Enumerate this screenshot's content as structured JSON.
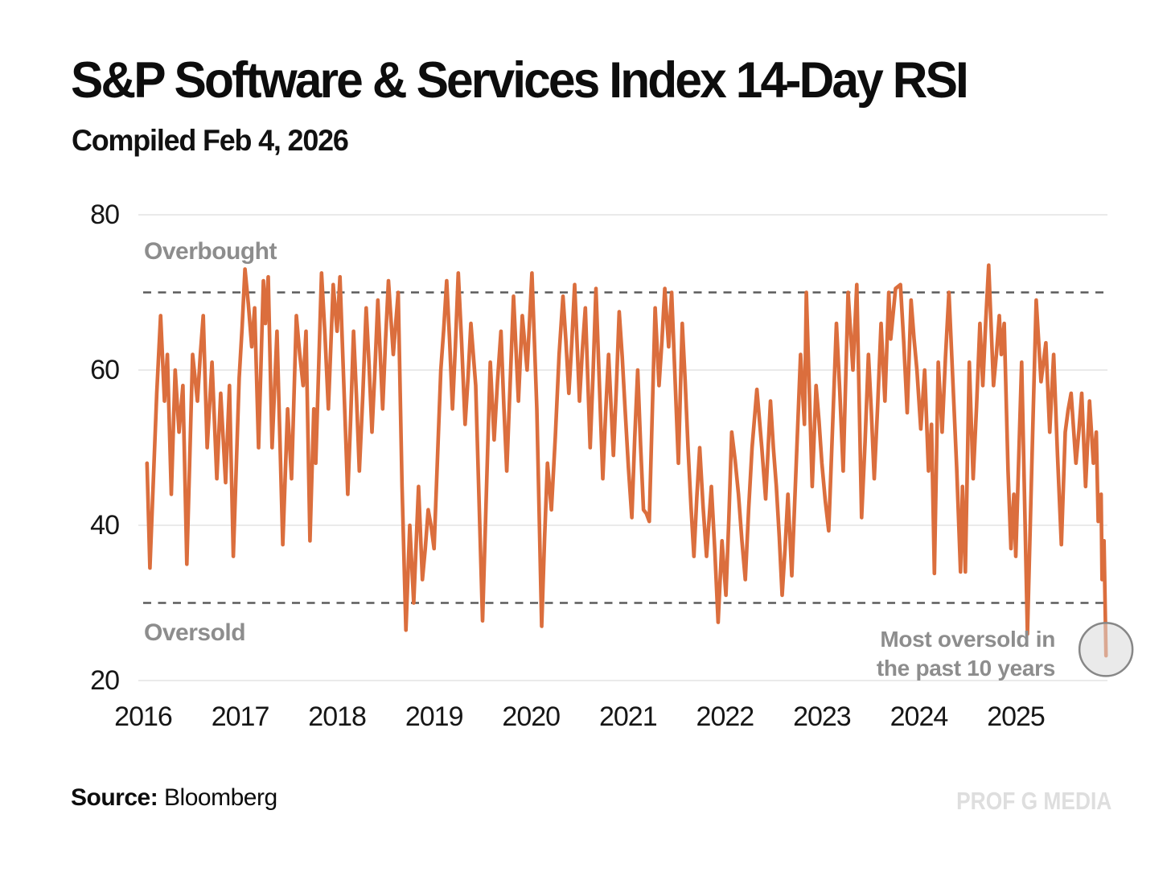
{
  "meta": {
    "title": "S&P Software & Services Index 14-Day RSI",
    "subtitle": "Compiled Feb 4, 2026",
    "source_label": "Source:",
    "source_value": "Bloomberg",
    "watermark": "PROF G MEDIA"
  },
  "chart_data": {
    "type": "line",
    "title": "S&P Software & Services Index 14-Day RSI",
    "subtitle": "Compiled Feb 4, 2026",
    "series_name": "14-Day RSI",
    "line_color": "#DB6E3D",
    "grid_color": "#e4e4e4",
    "band_line_color": "#5b5b5b",
    "label_color": "#8d8d8d",
    "x_axis": {
      "ticks": [
        2016,
        2017,
        2018,
        2019,
        2020,
        2021,
        2022,
        2023,
        2024,
        2025
      ],
      "range": [
        2016.0,
        2025.95
      ]
    },
    "y_axis": {
      "ticks": [
        20,
        40,
        60,
        80
      ],
      "range": [
        20,
        80
      ],
      "grid": true
    },
    "bands": {
      "overbought": {
        "value": 70,
        "label": "Overbought"
      },
      "oversold": {
        "value": 30,
        "label": "Oversold"
      }
    },
    "annotation": {
      "line1": "Most oversold in",
      "line2": "the past 10 years",
      "circle": {
        "t": 2025.93,
        "value_center": 24,
        "radius": 33,
        "fill": "#d9d9d9",
        "fill_opacity": 0.55,
        "stroke": "#878787"
      }
    },
    "render": {
      "jitter": 2.2,
      "stroke_width": 4.6
    },
    "points": [
      [
        2016.04,
        48
      ],
      [
        2016.07,
        34.5
      ],
      [
        2016.14,
        57
      ],
      [
        2016.18,
        67
      ],
      [
        2016.22,
        56
      ],
      [
        2016.25,
        62
      ],
      [
        2016.29,
        44
      ],
      [
        2016.33,
        60
      ],
      [
        2016.37,
        52
      ],
      [
        2016.41,
        58
      ],
      [
        2016.45,
        35
      ],
      [
        2016.51,
        62
      ],
      [
        2016.56,
        56
      ],
      [
        2016.62,
        67
      ],
      [
        2016.66,
        50
      ],
      [
        2016.71,
        61
      ],
      [
        2016.76,
        46
      ],
      [
        2016.8,
        57
      ],
      [
        2016.85,
        45.5
      ],
      [
        2016.89,
        58
      ],
      [
        2016.93,
        36
      ],
      [
        2016.99,
        59
      ],
      [
        2017.05,
        73
      ],
      [
        2017.12,
        63
      ],
      [
        2017.15,
        68
      ],
      [
        2017.19,
        50
      ],
      [
        2017.24,
        71.5
      ],
      [
        2017.26,
        66
      ],
      [
        2017.29,
        72
      ],
      [
        2017.33,
        50
      ],
      [
        2017.38,
        65
      ],
      [
        2017.44,
        37.5
      ],
      [
        2017.49,
        55
      ],
      [
        2017.53,
        46
      ],
      [
        2017.58,
        67
      ],
      [
        2017.65,
        58
      ],
      [
        2017.68,
        65
      ],
      [
        2017.72,
        38
      ],
      [
        2017.76,
        55
      ],
      [
        2017.78,
        48
      ],
      [
        2017.84,
        72.5
      ],
      [
        2017.91,
        55
      ],
      [
        2017.96,
        71
      ],
      [
        2018.0,
        65
      ],
      [
        2018.03,
        72
      ],
      [
        2018.11,
        44
      ],
      [
        2018.17,
        65
      ],
      [
        2018.23,
        47
      ],
      [
        2018.3,
        68
      ],
      [
        2018.36,
        52
      ],
      [
        2018.42,
        69
      ],
      [
        2018.47,
        55
      ],
      [
        2018.53,
        71.5
      ],
      [
        2018.58,
        62
      ],
      [
        2018.63,
        70
      ],
      [
        2018.67,
        45
      ],
      [
        2018.71,
        26.5
      ],
      [
        2018.75,
        40
      ],
      [
        2018.79,
        30
      ],
      [
        2018.84,
        45
      ],
      [
        2018.88,
        33
      ],
      [
        2018.94,
        42
      ],
      [
        2019.0,
        37
      ],
      [
        2019.07,
        60
      ],
      [
        2019.13,
        71.5
      ],
      [
        2019.19,
        55
      ],
      [
        2019.25,
        72.5
      ],
      [
        2019.32,
        53
      ],
      [
        2019.38,
        66
      ],
      [
        2019.43,
        58
      ],
      [
        2019.5,
        27.7
      ],
      [
        2019.58,
        61
      ],
      [
        2019.62,
        51
      ],
      [
        2019.69,
        65
      ],
      [
        2019.75,
        47
      ],
      [
        2019.82,
        69.5
      ],
      [
        2019.87,
        56
      ],
      [
        2019.91,
        67
      ],
      [
        2019.96,
        60
      ],
      [
        2020.01,
        72.5
      ],
      [
        2020.06,
        55
      ],
      [
        2020.11,
        27
      ],
      [
        2020.17,
        48
      ],
      [
        2020.21,
        42
      ],
      [
        2020.29,
        62
      ],
      [
        2020.33,
        69.5
      ],
      [
        2020.39,
        57
      ],
      [
        2020.45,
        71
      ],
      [
        2020.5,
        56
      ],
      [
        2020.56,
        68
      ],
      [
        2020.61,
        50
      ],
      [
        2020.67,
        70.5
      ],
      [
        2020.74,
        46
      ],
      [
        2020.8,
        62
      ],
      [
        2020.85,
        49
      ],
      [
        2020.91,
        67.5
      ],
      [
        2020.97,
        55
      ],
      [
        2021.04,
        41
      ],
      [
        2021.1,
        60
      ],
      [
        2021.16,
        42
      ],
      [
        2021.22,
        40.5
      ],
      [
        2021.28,
        68
      ],
      [
        2021.32,
        58
      ],
      [
        2021.38,
        70.5
      ],
      [
        2021.42,
        63
      ],
      [
        2021.45,
        70
      ],
      [
        2021.52,
        48
      ],
      [
        2021.56,
        66
      ],
      [
        2021.62,
        50
      ],
      [
        2021.68,
        36
      ],
      [
        2021.74,
        50
      ],
      [
        2021.81,
        36
      ],
      [
        2021.86,
        45
      ],
      [
        2021.93,
        27.5
      ],
      [
        2021.97,
        38
      ],
      [
        2022.01,
        31
      ],
      [
        2022.07,
        52
      ],
      [
        2022.14,
        44
      ],
      [
        2022.21,
        33
      ],
      [
        2022.28,
        50
      ],
      [
        2022.33,
        57.5
      ],
      [
        2022.38,
        50
      ],
      [
        2022.42,
        43.4
      ],
      [
        2022.47,
        56
      ],
      [
        2022.53,
        45
      ],
      [
        2022.59,
        31
      ],
      [
        2022.65,
        44
      ],
      [
        2022.69,
        33.5
      ],
      [
        2022.78,
        62
      ],
      [
        2022.82,
        53
      ],
      [
        2022.84,
        70
      ],
      [
        2022.9,
        45
      ],
      [
        2022.94,
        58
      ],
      [
        2023.0,
        48
      ],
      [
        2023.07,
        39.3
      ],
      [
        2023.15,
        66
      ],
      [
        2023.22,
        47
      ],
      [
        2023.27,
        70
      ],
      [
        2023.32,
        60
      ],
      [
        2023.36,
        71
      ],
      [
        2023.41,
        41
      ],
      [
        2023.48,
        62
      ],
      [
        2023.54,
        46
      ],
      [
        2023.61,
        66
      ],
      [
        2023.65,
        56
      ],
      [
        2023.69,
        70
      ],
      [
        2023.71,
        64
      ],
      [
        2023.76,
        70.5
      ],
      [
        2023.81,
        71
      ],
      [
        2023.88,
        54.5
      ],
      [
        2023.92,
        69
      ],
      [
        2023.98,
        60
      ],
      [
        2024.02,
        52.4
      ],
      [
        2024.06,
        60
      ],
      [
        2024.1,
        47
      ],
      [
        2024.13,
        53
      ],
      [
        2024.16,
        33.8
      ],
      [
        2024.2,
        61
      ],
      [
        2024.24,
        52
      ],
      [
        2024.31,
        70
      ],
      [
        2024.39,
        47.5
      ],
      [
        2024.43,
        34
      ],
      [
        2024.45,
        45
      ],
      [
        2024.48,
        34
      ],
      [
        2024.52,
        61
      ],
      [
        2024.56,
        46
      ],
      [
        2024.63,
        66
      ],
      [
        2024.66,
        58
      ],
      [
        2024.72,
        73.5
      ],
      [
        2024.77,
        58
      ],
      [
        2024.83,
        67
      ],
      [
        2024.85,
        62
      ],
      [
        2024.88,
        66
      ],
      [
        2024.92,
        47
      ],
      [
        2024.95,
        37
      ],
      [
        2024.98,
        44
      ],
      [
        2025.0,
        36
      ],
      [
        2025.06,
        61
      ],
      [
        2025.12,
        26
      ],
      [
        2025.17,
        50
      ],
      [
        2025.21,
        69
      ],
      [
        2025.26,
        58.5
      ],
      [
        2025.31,
        63.5
      ],
      [
        2025.35,
        52
      ],
      [
        2025.39,
        62
      ],
      [
        2025.43,
        49
      ],
      [
        2025.47,
        37.5
      ],
      [
        2025.51,
        52
      ],
      [
        2025.57,
        57
      ],
      [
        2025.62,
        48
      ],
      [
        2025.68,
        57
      ],
      [
        2025.72,
        45
      ],
      [
        2025.76,
        56
      ],
      [
        2025.8,
        48
      ],
      [
        2025.83,
        52
      ],
      [
        2025.85,
        40.5
      ],
      [
        2025.88,
        44
      ],
      [
        2025.89,
        33
      ],
      [
        2025.91,
        38
      ],
      [
        2025.93,
        23.2
      ]
    ]
  }
}
